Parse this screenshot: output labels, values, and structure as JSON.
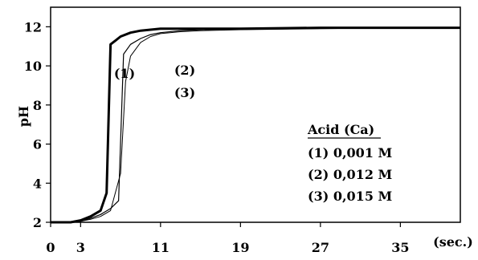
{
  "chart_data": {
    "type": "line",
    "title": "",
    "xlabel": "(sec.)",
    "ylabel": "pH",
    "xlim": [
      0,
      41
    ],
    "ylim": [
      2,
      13
    ],
    "x_ticks": [
      0,
      3,
      11,
      19,
      27,
      35
    ],
    "x_tick_labels": [
      "0",
      "3",
      "11",
      "19",
      "27",
      "35"
    ],
    "y_ticks": [
      2,
      4,
      6,
      8,
      10,
      12
    ],
    "y_tick_labels": [
      "2",
      "4",
      "6",
      "8",
      "10",
      "12"
    ],
    "grid": false,
    "legend": {
      "title": "Acid (Ca)",
      "placement": "right-center",
      "entries": [
        "(1) 0,001 M",
        "(2) 0,012 M",
        "(3) 0,015 M"
      ]
    },
    "curve_labels": [
      "(1)",
      "(2)",
      "(3)"
    ],
    "series": [
      {
        "x": [
          0,
          2,
          3,
          4,
          5,
          5.6,
          6,
          6.5,
          7,
          8,
          9,
          10,
          11,
          13,
          15,
          19,
          27,
          35,
          41
        ],
        "y": [
          2,
          2,
          2.1,
          2.3,
          2.6,
          3.5,
          11.1,
          11.3,
          11.5,
          11.7,
          11.8,
          11.85,
          11.9,
          11.9,
          11.9,
          11.9,
          11.95,
          11.95,
          11.95
        ]
      },
      {
        "x": [
          0,
          2,
          3,
          4,
          5,
          6,
          6.8,
          7.3,
          8,
          9,
          10,
          11,
          13,
          15,
          19,
          27,
          35,
          41
        ],
        "y": [
          2,
          2,
          2.05,
          2.2,
          2.4,
          2.7,
          3.1,
          10.6,
          11.1,
          11.4,
          11.6,
          11.7,
          11.8,
          11.85,
          11.9,
          11.95,
          11.95,
          11.95
        ]
      },
      {
        "x": [
          0,
          2,
          3,
          4,
          5,
          6,
          7,
          7.5,
          8,
          9,
          10,
          11,
          13,
          15,
          19,
          27,
          35,
          41
        ],
        "y": [
          2,
          2,
          2.05,
          2.15,
          2.3,
          2.6,
          4.5,
          9.2,
          10.5,
          11.2,
          11.5,
          11.65,
          11.75,
          11.8,
          11.85,
          11.9,
          11.95,
          11.95
        ]
      }
    ]
  }
}
